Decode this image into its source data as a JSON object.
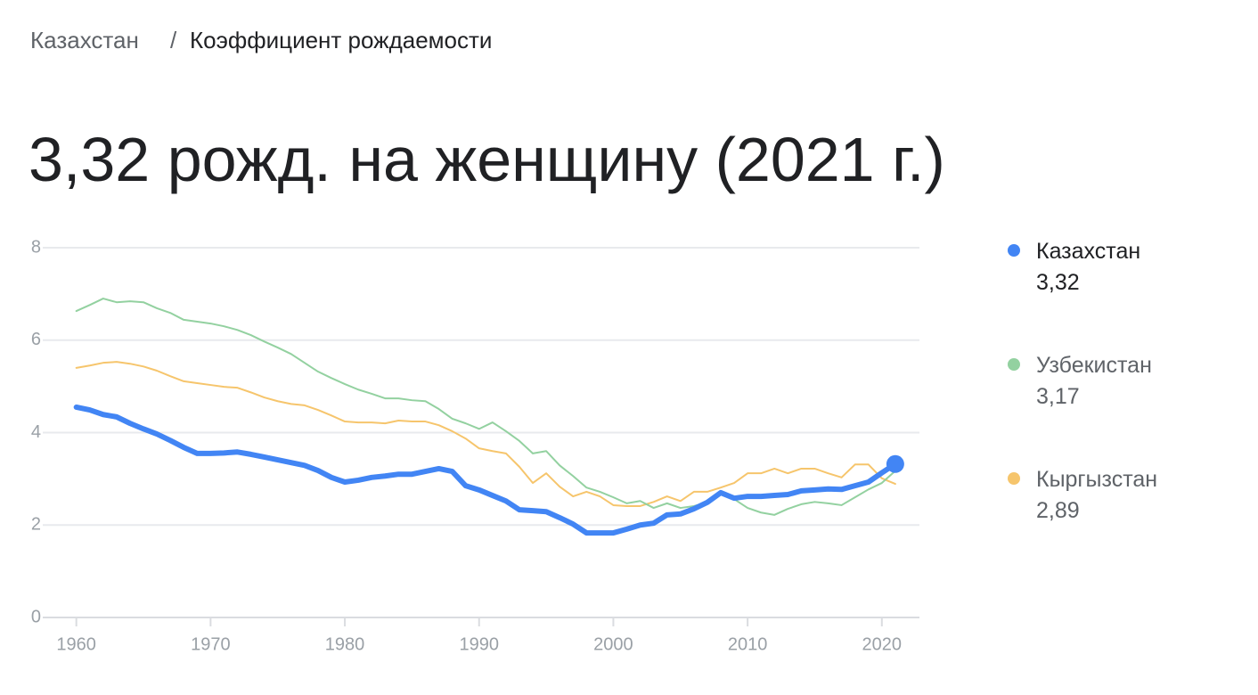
{
  "breadcrumb": {
    "items": [
      "Казахстан",
      "Коэффициент рождаемости"
    ],
    "separator": "/"
  },
  "chart_data": {
    "type": "line",
    "title": "3,32 рожд. на женщину (2021 г.)",
    "x": [
      1960,
      1961,
      1962,
      1963,
      1964,
      1965,
      1966,
      1967,
      1968,
      1969,
      1970,
      1971,
      1972,
      1973,
      1974,
      1975,
      1976,
      1977,
      1978,
      1979,
      1980,
      1981,
      1982,
      1983,
      1984,
      1985,
      1986,
      1987,
      1988,
      1989,
      1990,
      1991,
      1992,
      1993,
      1994,
      1995,
      1996,
      1997,
      1998,
      1999,
      2000,
      2001,
      2002,
      2003,
      2004,
      2005,
      2006,
      2007,
      2008,
      2009,
      2010,
      2011,
      2012,
      2013,
      2014,
      2015,
      2016,
      2017,
      2018,
      2019,
      2020,
      2021
    ],
    "xlim": [
      1957.5,
      2022.8
    ],
    "xticks": [
      1960,
      1970,
      1980,
      1990,
      2000,
      2010,
      2020
    ],
    "ylim": [
      0,
      8
    ],
    "yticks": [
      0,
      2,
      4,
      6,
      8
    ],
    "grid": true,
    "legend": "right",
    "series": [
      {
        "name": "Казахстан",
        "color": "#4285f4",
        "values": [
          4.55,
          4.49,
          4.39,
          4.34,
          4.2,
          4.08,
          3.97,
          3.83,
          3.68,
          3.55,
          3.55,
          3.56,
          3.58,
          3.53,
          3.47,
          3.41,
          3.35,
          3.29,
          3.18,
          3.03,
          2.93,
          2.97,
          3.03,
          3.06,
          3.1,
          3.1,
          3.16,
          3.22,
          3.16,
          2.85,
          2.76,
          2.64,
          2.52,
          2.33,
          2.31,
          2.29,
          2.16,
          2.02,
          1.83,
          1.83,
          1.83,
          1.91,
          2.0,
          2.04,
          2.22,
          2.24,
          2.35,
          2.49,
          2.7,
          2.58,
          2.62,
          2.62,
          2.64,
          2.66,
          2.74,
          2.76,
          2.78,
          2.77,
          2.85,
          2.93,
          3.13,
          3.32
        ],
        "value_labels": [
          null,
          null,
          null,
          null,
          null,
          null,
          null,
          null,
          null,
          null,
          null,
          null,
          null,
          null,
          null,
          null,
          null,
          null,
          null,
          null,
          null,
          null,
          null,
          null,
          null,
          null,
          null,
          null,
          null,
          null,
          null,
          null,
          null,
          null,
          null,
          null,
          null,
          null,
          null,
          null,
          null,
          null,
          null,
          null,
          null,
          null,
          null,
          null,
          null,
          null,
          null,
          null,
          null,
          null,
          null,
          null,
          null,
          null,
          null,
          null,
          null,
          "3,32"
        ]
      },
      {
        "name": "Узбекистан",
        "color": "#93d1a0",
        "values": [
          6.63,
          6.76,
          6.9,
          6.82,
          6.84,
          6.82,
          6.69,
          6.59,
          6.44,
          6.4,
          6.36,
          6.3,
          6.22,
          6.11,
          5.97,
          5.84,
          5.7,
          5.51,
          5.32,
          5.18,
          5.05,
          4.93,
          4.84,
          4.74,
          4.74,
          4.7,
          4.68,
          4.51,
          4.3,
          4.2,
          4.08,
          4.22,
          4.03,
          3.82,
          3.55,
          3.6,
          3.29,
          3.06,
          2.81,
          2.72,
          2.6,
          2.47,
          2.52,
          2.37,
          2.47,
          2.37,
          2.41,
          2.49,
          2.7,
          2.56,
          2.37,
          2.27,
          2.22,
          2.35,
          2.45,
          2.5,
          2.47,
          2.43,
          2.6,
          2.77,
          2.91,
          3.17
        ],
        "value_labels": [
          null,
          null,
          null,
          null,
          null,
          null,
          null,
          null,
          null,
          null,
          null,
          null,
          null,
          null,
          null,
          null,
          null,
          null,
          null,
          null,
          null,
          null,
          null,
          null,
          null,
          null,
          null,
          null,
          null,
          null,
          null,
          null,
          null,
          null,
          null,
          null,
          null,
          null,
          null,
          null,
          null,
          null,
          null,
          null,
          null,
          null,
          null,
          null,
          null,
          null,
          null,
          null,
          null,
          null,
          null,
          null,
          null,
          null,
          null,
          null,
          null,
          "3,17"
        ]
      },
      {
        "name": "Кыргызстан",
        "color": "#f6c56c",
        "values": [
          5.4,
          5.45,
          5.51,
          5.53,
          5.49,
          5.43,
          5.34,
          5.22,
          5.11,
          5.07,
          5.03,
          4.99,
          4.97,
          4.87,
          4.76,
          4.68,
          4.62,
          4.59,
          4.49,
          4.37,
          4.24,
          4.22,
          4.22,
          4.2,
          4.26,
          4.24,
          4.24,
          4.16,
          4.03,
          3.87,
          3.66,
          3.6,
          3.55,
          3.26,
          2.91,
          3.12,
          2.83,
          2.62,
          2.72,
          2.62,
          2.43,
          2.41,
          2.41,
          2.5,
          2.62,
          2.52,
          2.72,
          2.72,
          2.81,
          2.91,
          3.12,
          3.12,
          3.22,
          3.12,
          3.22,
          3.22,
          3.12,
          3.03,
          3.31,
          3.31,
          3.01,
          2.89
        ],
        "value_labels": [
          null,
          null,
          null,
          null,
          null,
          null,
          null,
          null,
          null,
          null,
          null,
          null,
          null,
          null,
          null,
          null,
          null,
          null,
          null,
          null,
          null,
          null,
          null,
          null,
          null,
          null,
          null,
          null,
          null,
          null,
          null,
          null,
          null,
          null,
          null,
          null,
          null,
          null,
          null,
          null,
          null,
          null,
          null,
          null,
          null,
          null,
          null,
          null,
          null,
          null,
          null,
          null,
          null,
          null,
          null,
          null,
          null,
          null,
          null,
          null,
          null,
          "2,89"
        ]
      }
    ]
  }
}
